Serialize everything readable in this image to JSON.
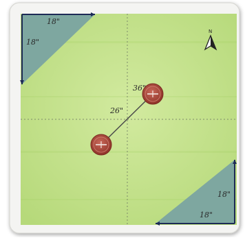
{
  "diagram": {
    "colors": {
      "field": "#b9de7c",
      "field_light": "#cfe99c",
      "corner_fill": "#7ea7a0",
      "corner_edge": "#1d2a56",
      "frame": "#f4f4f2",
      "guide_line": "#7d8a6a",
      "marker": "#a74438",
      "connector": "#4a4a4a"
    },
    "top_left_corner": {
      "top_side_label": "18\"",
      "left_side_label": "18\""
    },
    "bottom_right_corner": {
      "right_side_label": "18\"",
      "bottom_side_label": "18\""
    },
    "connector": {
      "length_label": "26\"",
      "end_label": "36\""
    },
    "compass": {
      "north_label": "N",
      "icon": "north-arrow-icon"
    }
  }
}
